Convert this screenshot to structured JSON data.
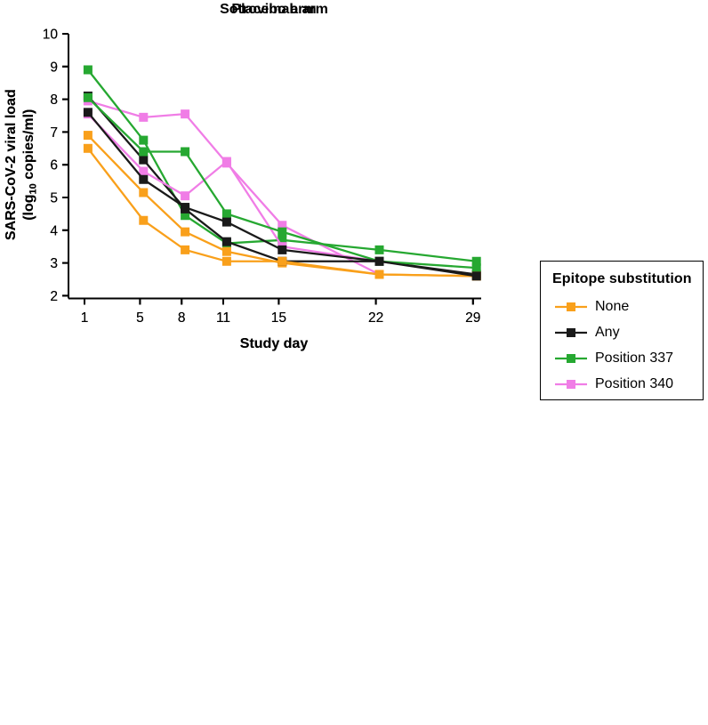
{
  "figure": {
    "background": "#ffffff",
    "text_color": "#000000"
  },
  "legend": {
    "title": "Epitope substitution",
    "items": [
      {
        "label": "None",
        "color": "#F9A01B"
      },
      {
        "label": "Any",
        "color": "#1A1A1A"
      },
      {
        "label": "Position 337",
        "color": "#26A831"
      },
      {
        "label": "Position 340",
        "color": "#F07DE6"
      }
    ]
  },
  "chart_data": [
    {
      "type": "line",
      "title": "Placebo arm",
      "xlabel": "Study day",
      "ylabel_line1": "SARS-CoV-2 viral load",
      "ylabel_line2": {
        "pre": "(log",
        "sub": "10",
        "post": " copies/ml)"
      },
      "x_ticks": [
        1,
        5,
        8,
        11,
        15,
        22,
        29
      ],
      "y_ticks": [
        2,
        3,
        4,
        5,
        6,
        7,
        8,
        9,
        10
      ],
      "ylim": [
        2,
        10
      ],
      "grid": false,
      "marker": "square",
      "legend_position": "right-outside",
      "x_offset_days": 0.25,
      "draw_order": [
        3,
        2,
        0,
        1
      ],
      "series": [
        {
          "name": "None",
          "color": "#F9A01B",
          "x": [
            1,
            5,
            8,
            11,
            15,
            22,
            29
          ],
          "y": [
            6.9,
            5.15,
            3.95,
            3.35,
            3.0,
            2.65,
            2.6
          ]
        },
        {
          "name": "Any",
          "color": "#1A1A1A",
          "x": [
            1,
            5,
            8,
            11,
            15,
            22,
            29
          ],
          "y": [
            8.1,
            6.15,
            4.65,
            3.65,
            3.05,
            3.05,
            2.65
          ]
        },
        {
          "name": "Position 337",
          "color": "#26A831",
          "x": [
            1,
            5,
            8,
            11,
            15,
            22,
            29
          ],
          "y": [
            8.9,
            6.75,
            4.45,
            3.6,
            3.7,
            3.4,
            3.05
          ]
        },
        {
          "name": "Position 340",
          "color": "#F07DE6",
          "x": [
            1,
            5,
            8,
            11,
            15,
            22
          ],
          "y": [
            7.95,
            7.45,
            7.55,
            6.05,
            4.15,
            2.65
          ]
        }
      ]
    },
    {
      "type": "line",
      "title": "Sotrovimab arm",
      "xlabel": "Study day",
      "ylabel_line1": "SARS-CoV-2 viral load",
      "ylabel_line2": {
        "pre": "(log",
        "sub": "10",
        "post": " copies/ml)"
      },
      "x_ticks": [
        1,
        5,
        8,
        11,
        15,
        22,
        29
      ],
      "y_ticks": [
        2,
        3,
        4,
        5,
        6,
        7,
        8,
        9,
        10
      ],
      "ylim": [
        2,
        10
      ],
      "grid": false,
      "marker": "square",
      "legend_position": "right-outside",
      "x_offset_days": 0.25,
      "draw_order": [
        3,
        2,
        0,
        1
      ],
      "series": [
        {
          "name": "None",
          "color": "#F9A01B",
          "x": [
            1,
            5,
            8,
            11,
            15,
            22,
            29
          ],
          "y": [
            6.5,
            4.3,
            3.4,
            3.05,
            3.05,
            2.65,
            2.6
          ]
        },
        {
          "name": "Any",
          "color": "#1A1A1A",
          "x": [
            1,
            5,
            8,
            11,
            15,
            22,
            29
          ],
          "y": [
            7.6,
            5.55,
            4.7,
            4.25,
            3.4,
            3.05,
            2.6
          ]
        },
        {
          "name": "Position 337",
          "color": "#26A831",
          "x": [
            1,
            5,
            8,
            11,
            15,
            22,
            29
          ],
          "y": [
            8.05,
            6.4,
            6.4,
            4.5,
            3.95,
            3.05,
            2.85
          ]
        },
        {
          "name": "Position 340",
          "color": "#F07DE6",
          "x": [
            1,
            5,
            8,
            11,
            15,
            22
          ],
          "y": [
            7.55,
            5.8,
            5.05,
            6.1,
            3.5,
            3.05
          ]
        }
      ]
    }
  ]
}
